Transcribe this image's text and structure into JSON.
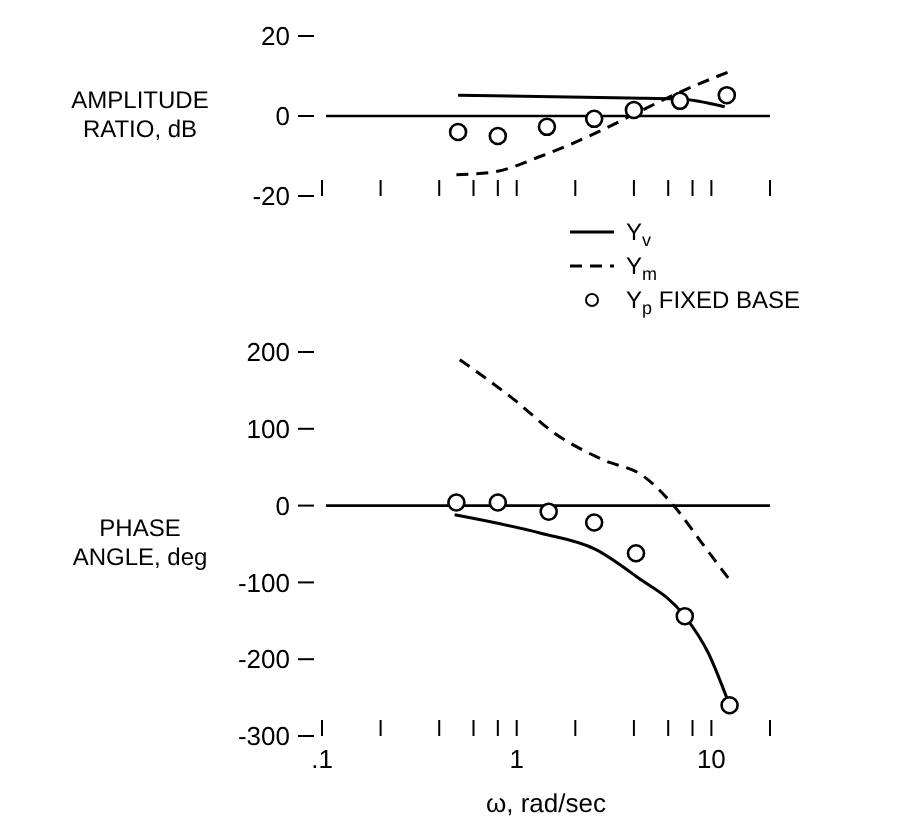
{
  "chart_data": [
    {
      "type": "line",
      "ylabel": "AMPLITUDE RATIO, dB",
      "log": "x",
      "xlim": [
        0.1,
        20
      ],
      "ylim": [
        -20,
        20
      ],
      "yticks": [
        -20,
        0,
        20
      ],
      "xticks": [
        {
          "value": 0.1,
          "label": null
        },
        {
          "value": 0.2,
          "label": null
        },
        {
          "value": 0.4,
          "label": null
        },
        {
          "value": 0.6,
          "label": null
        },
        {
          "value": 0.8,
          "label": null
        },
        {
          "value": 1,
          "label": null
        },
        {
          "value": 2,
          "label": null
        },
        {
          "value": 4,
          "label": null
        },
        {
          "value": 6,
          "label": null
        },
        {
          "value": 8,
          "label": null
        },
        {
          "value": 10,
          "label": null
        },
        {
          "value": 20,
          "label": null
        }
      ],
      "tick_labels": "y",
      "grid": false,
      "legend": false,
      "ref_lines": [
        {
          "axis": "y",
          "value": 0,
          "color": "#000000"
        }
      ],
      "series": [
        {
          "color": "#000000",
          "line_style": "solid",
          "x": [
            0.5,
            3.8,
            6.7,
            11.7
          ],
          "values": [
            5.2,
            4.5,
            4.3,
            2.3
          ]
        },
        {
          "color": "#000000",
          "line_style": "dashed",
          "x": [
            0.49,
            0.76,
            1.34,
            2.54,
            4.1,
            6.7,
            12.2
          ],
          "values": [
            -14.7,
            -14,
            -10,
            -4.3,
            0.7,
            5.7,
            11
          ]
        },
        {
          "type": "scatter",
          "color": "#000000",
          "marker": "circle",
          "x": [
            0.5,
            0.8,
            1.43,
            2.5,
            4.0,
            6.9,
            12
          ],
          "values": [
            -4,
            -5,
            -2.7,
            -0.7,
            1.5,
            3.8,
            5.2
          ]
        }
      ]
    },
    {
      "type": "line",
      "ylabel": "PHASE ANGLE, deg",
      "xlabel": "ω, rad/sec",
      "log": "x",
      "xlim": [
        0.1,
        20
      ],
      "ylim": [
        -300,
        200
      ],
      "yticks": [
        -300,
        -200,
        -100,
        0,
        100,
        200
      ],
      "xticks": [
        {
          "value": 0.1,
          "label": ".1"
        },
        {
          "value": 0.2,
          "label": null
        },
        {
          "value": 0.4,
          "label": null
        },
        {
          "value": 0.6,
          "label": null
        },
        {
          "value": 0.8,
          "label": null
        },
        1,
        {
          "value": 2,
          "label": null
        },
        {
          "value": 4,
          "label": null
        },
        {
          "value": 6,
          "label": null
        },
        {
          "value": 8,
          "label": null
        },
        10,
        {
          "value": 20,
          "label": null
        }
      ],
      "grid": false,
      "legend": "top right",
      "ref_lines": [
        {
          "axis": "y",
          "value": 0,
          "color": "#000000"
        }
      ],
      "series": [
        {
          "name": "Y$_{v}$",
          "color": "#000000",
          "line_style": "solid",
          "x": [
            0.48,
            1.33,
            2.54,
            4.1,
            7.3,
            9.6,
            12.4
          ],
          "values": [
            -12,
            -36,
            -57,
            -92,
            -144,
            -191,
            -260
          ]
        },
        {
          "name": "Y$_{m}$",
          "color": "#000000",
          "line_style": "dashed",
          "x": [
            0.51,
            0.97,
            1.57,
            2.75,
            4.5,
            6.4,
            9.2,
            12.7
          ],
          "values": [
            190,
            138,
            94,
            60,
            38,
            0,
            -53,
            -100
          ]
        },
        {
          "type": "scatter",
          "name": "Y$_{p}$ FIXED BASE",
          "color": "#000000",
          "marker": "circle",
          "x": [
            0.49,
            0.8,
            1.46,
            2.5,
            4.1,
            7.3,
            12.4
          ],
          "values": [
            4,
            4,
            -8,
            -22,
            -62,
            -144,
            -260
          ]
        }
      ]
    }
  ]
}
